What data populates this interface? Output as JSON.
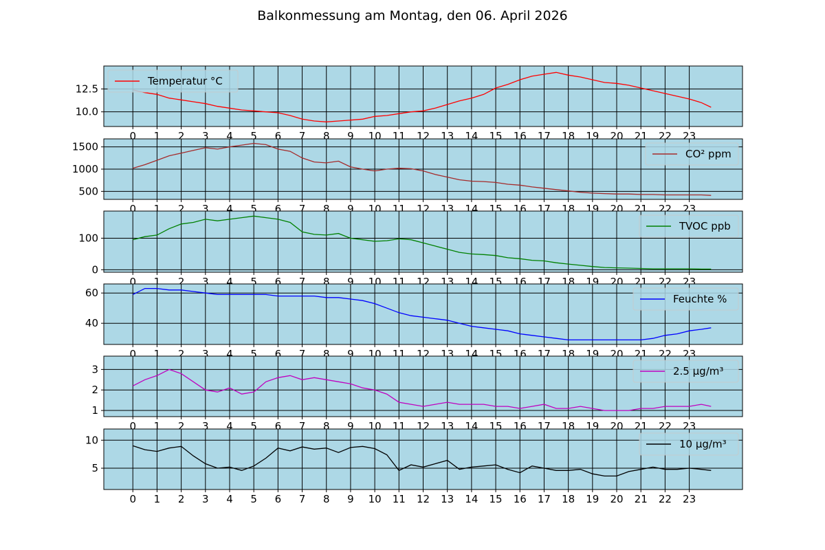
{
  "figure": {
    "title": "Balkonmessung am Montag, den 06. April 2026",
    "background": "#add8e6"
  },
  "chart_data": [
    {
      "type": "line",
      "x_ticks": [
        "0",
        "1",
        "2",
        "3",
        "4",
        "5",
        "6",
        "7",
        "8",
        "9",
        "10",
        "11",
        "12",
        "13",
        "14",
        "15",
        "16",
        "17",
        "18",
        "19",
        "20",
        "21",
        "22",
        "23"
      ],
      "xlim": [
        -1.2,
        25.2
      ],
      "ylim": [
        8.4,
        15.0
      ],
      "y_ticks": [
        "10.0",
        "12.5"
      ],
      "grid": true,
      "legend_position": "top-left",
      "series": [
        {
          "name": "Temperatur °C",
          "color": "#ff0000",
          "x": [
            0,
            0.5,
            1,
            1.5,
            2,
            2.5,
            3,
            3.5,
            4,
            4.5,
            5,
            5.5,
            6,
            6.5,
            7,
            7.5,
            8,
            8.5,
            9,
            9.5,
            10,
            10.5,
            11,
            11.5,
            12,
            12.5,
            13,
            13.5,
            14,
            14.5,
            15,
            15.5,
            16,
            16.5,
            17,
            17.5,
            18,
            18.5,
            19,
            19.5,
            20,
            20.5,
            21,
            21.5,
            22,
            22.5,
            23,
            23.5,
            23.9
          ],
          "values": [
            12.4,
            12.1,
            11.9,
            11.5,
            11.3,
            11.1,
            10.9,
            10.6,
            10.4,
            10.2,
            10.1,
            10.0,
            9.9,
            9.6,
            9.2,
            9.0,
            8.9,
            9.0,
            9.1,
            9.2,
            9.5,
            9.6,
            9.8,
            10.0,
            10.1,
            10.4,
            10.8,
            11.2,
            11.5,
            11.9,
            12.6,
            13.0,
            13.5,
            13.9,
            14.1,
            14.3,
            14.0,
            13.8,
            13.5,
            13.2,
            13.1,
            12.9,
            12.6,
            12.3,
            12.0,
            11.7,
            11.4,
            11.0,
            10.5
          ]
        }
      ]
    },
    {
      "type": "line",
      "x_ticks": [
        "0",
        "1",
        "2",
        "3",
        "4",
        "5",
        "6",
        "7",
        "8",
        "9",
        "10",
        "11",
        "12",
        "13",
        "14",
        "15",
        "16",
        "17",
        "18",
        "19",
        "20",
        "21",
        "22",
        "23"
      ],
      "xlim": [
        -1.2,
        25.2
      ],
      "ylim": [
        320,
        1680
      ],
      "y_ticks": [
        "500",
        "1000",
        "1500"
      ],
      "grid": true,
      "legend_position": "top-right",
      "series": [
        {
          "name": "CO² ppm",
          "color": "#a52a2a",
          "x": [
            0,
            0.5,
            1,
            1.5,
            2,
            2.5,
            3,
            3.5,
            4,
            4.5,
            5,
            5.5,
            6,
            6.5,
            7,
            7.5,
            8,
            8.5,
            9,
            9.5,
            10,
            10.5,
            11,
            11.5,
            12,
            12.5,
            13,
            13.5,
            14,
            14.5,
            15,
            15.5,
            16,
            16.5,
            17,
            17.5,
            18,
            18.5,
            19,
            19.5,
            20,
            20.5,
            21,
            21.5,
            22,
            22.5,
            23,
            23.5,
            23.9
          ],
          "values": [
            1020,
            1100,
            1200,
            1300,
            1360,
            1420,
            1480,
            1450,
            1500,
            1540,
            1580,
            1550,
            1450,
            1400,
            1250,
            1160,
            1140,
            1180,
            1050,
            1000,
            960,
            1000,
            1020,
            1010,
            960,
            880,
            820,
            760,
            730,
            720,
            700,
            660,
            640,
            600,
            570,
            540,
            510,
            480,
            460,
            450,
            440,
            440,
            430,
            430,
            420,
            420,
            420,
            420,
            410
          ]
        }
      ]
    },
    {
      "type": "line",
      "x_ticks": [
        "0",
        "1",
        "2",
        "3",
        "4",
        "5",
        "6",
        "7",
        "8",
        "9",
        "10",
        "11",
        "12",
        "13",
        "14",
        "15",
        "16",
        "17",
        "18",
        "19",
        "20",
        "21",
        "22",
        "23"
      ],
      "xlim": [
        -1.2,
        25.2
      ],
      "ylim": [
        -8,
        186
      ],
      "y_ticks": [
        "0",
        "100"
      ],
      "grid": true,
      "legend_position": "top-right",
      "series": [
        {
          "name": "TVOC ppb",
          "color": "#008000",
          "x": [
            0,
            0.5,
            1,
            1.5,
            2,
            2.5,
            3,
            3.5,
            4,
            4.5,
            5,
            5.5,
            6,
            6.5,
            7,
            7.5,
            8,
            8.5,
            9,
            9.5,
            10,
            10.5,
            11,
            11.5,
            12,
            12.5,
            13,
            13.5,
            14,
            14.5,
            15,
            15.5,
            16,
            16.5,
            17,
            17.5,
            18,
            18.5,
            19,
            19.5,
            20,
            20.5,
            21,
            21.5,
            22,
            22.5,
            23,
            23.5,
            23.9
          ],
          "values": [
            95,
            105,
            110,
            130,
            145,
            150,
            160,
            155,
            160,
            165,
            170,
            165,
            160,
            150,
            120,
            112,
            110,
            115,
            100,
            95,
            90,
            92,
            98,
            95,
            85,
            75,
            65,
            55,
            50,
            48,
            45,
            38,
            35,
            30,
            28,
            22,
            18,
            14,
            10,
            7,
            6,
            5,
            4,
            3,
            3,
            3,
            3,
            2,
            2
          ]
        }
      ]
    },
    {
      "type": "line",
      "x_ticks": [
        "0",
        "1",
        "2",
        "3",
        "4",
        "5",
        "6",
        "7",
        "8",
        "9",
        "10",
        "11",
        "12",
        "13",
        "14",
        "15",
        "16",
        "17",
        "18",
        "19",
        "20",
        "21",
        "22",
        "23"
      ],
      "xlim": [
        -1.2,
        25.2
      ],
      "ylim": [
        26,
        66
      ],
      "y_ticks": [
        "40",
        "60"
      ],
      "grid": true,
      "legend_position": "top-right",
      "series": [
        {
          "name": "Feuchte %",
          "color": "#0000ff",
          "x": [
            0,
            0.5,
            1,
            1.5,
            2,
            2.5,
            3,
            3.5,
            4,
            4.5,
            5,
            5.5,
            6,
            6.5,
            7,
            7.5,
            8,
            8.5,
            9,
            9.5,
            10,
            10.5,
            11,
            11.5,
            12,
            12.5,
            13,
            13.5,
            14,
            14.5,
            15,
            15.5,
            16,
            16.5,
            17,
            17.5,
            18,
            18.5,
            19,
            19.5,
            20,
            20.5,
            21,
            21.5,
            22,
            22.5,
            23,
            23.5,
            23.9
          ],
          "values": [
            59,
            63,
            63,
            62,
            62,
            61,
            60,
            59,
            59,
            59,
            59,
            59,
            58,
            58,
            58,
            58,
            57,
            57,
            56,
            55,
            53,
            50,
            47,
            45,
            44,
            43,
            42,
            40,
            38,
            37,
            36,
            35,
            33,
            32,
            31,
            30,
            29,
            29,
            29,
            29,
            29,
            29,
            29,
            30,
            32,
            33,
            35,
            36,
            37
          ]
        }
      ]
    },
    {
      "type": "line",
      "x_ticks": [
        "0",
        "1",
        "2",
        "3",
        "4",
        "5",
        "6",
        "7",
        "8",
        "9",
        "10",
        "11",
        "12",
        "13",
        "14",
        "15",
        "16",
        "17",
        "18",
        "19",
        "20",
        "21",
        "22",
        "23"
      ],
      "xlim": [
        -1.2,
        25.2
      ],
      "ylim": [
        0.7,
        3.65
      ],
      "y_ticks": [
        "1",
        "2",
        "3"
      ],
      "grid": true,
      "legend_position": "top-right",
      "series": [
        {
          "name": "2.5 µg/m³",
          "color": "#bf00bf",
          "x": [
            0,
            0.5,
            1,
            1.5,
            2,
            2.5,
            3,
            3.5,
            4,
            4.5,
            5,
            5.5,
            6,
            6.5,
            7,
            7.5,
            8,
            8.5,
            9,
            9.5,
            10,
            10.5,
            11,
            11.5,
            12,
            12.5,
            13,
            13.5,
            14,
            14.5,
            15,
            15.5,
            16,
            16.5,
            17,
            17.5,
            18,
            18.5,
            19,
            19.5,
            20,
            20.5,
            21,
            21.5,
            22,
            22.5,
            23,
            23.5,
            23.9
          ],
          "values": [
            2.2,
            2.5,
            2.7,
            3.0,
            2.8,
            2.4,
            2.0,
            1.9,
            2.1,
            1.8,
            1.9,
            2.4,
            2.6,
            2.7,
            2.5,
            2.6,
            2.5,
            2.4,
            2.3,
            2.1,
            2.0,
            1.8,
            1.4,
            1.3,
            1.2,
            1.3,
            1.4,
            1.3,
            1.3,
            1.3,
            1.2,
            1.2,
            1.1,
            1.2,
            1.3,
            1.1,
            1.1,
            1.2,
            1.1,
            1.0,
            1.0,
            1.0,
            1.1,
            1.1,
            1.2,
            1.2,
            1.2,
            1.3,
            1.2
          ]
        }
      ]
    },
    {
      "type": "line",
      "x_ticks": [
        "0",
        "1",
        "2",
        "3",
        "4",
        "5",
        "6",
        "7",
        "8",
        "9",
        "10",
        "11",
        "12",
        "13",
        "14",
        "15",
        "16",
        "17",
        "18",
        "19",
        "20",
        "21",
        "22",
        "23"
      ],
      "xlim": [
        -1.2,
        25.2
      ],
      "ylim": [
        1.2,
        12.0
      ],
      "y_ticks": [
        "5",
        "10"
      ],
      "grid": true,
      "legend_position": "top-right",
      "series": [
        {
          "name": "10 µg/m³",
          "color": "#000000",
          "x": [
            0,
            0.5,
            1,
            1.5,
            2,
            2.5,
            3,
            3.5,
            4,
            4.5,
            5,
            5.5,
            6,
            6.5,
            7,
            7.5,
            8,
            8.5,
            9,
            9.5,
            10,
            10.5,
            11,
            11.5,
            12,
            12.5,
            13,
            13.5,
            14,
            14.5,
            15,
            15.5,
            16,
            16.5,
            17,
            17.5,
            18,
            18.5,
            19,
            19.5,
            20,
            20.5,
            21,
            21.5,
            22,
            22.5,
            23,
            23.5,
            23.9
          ],
          "values": [
            9.0,
            8.3,
            8.0,
            8.6,
            8.9,
            7.2,
            5.8,
            5.0,
            5.2,
            4.6,
            5.4,
            6.8,
            8.6,
            8.1,
            8.8,
            8.4,
            8.6,
            7.8,
            8.7,
            8.9,
            8.5,
            7.4,
            4.6,
            5.6,
            5.2,
            5.8,
            6.4,
            4.8,
            5.2,
            5.4,
            5.6,
            4.8,
            4.2,
            5.4,
            5.0,
            4.6,
            4.6,
            4.8,
            4.0,
            3.6,
            3.6,
            4.4,
            4.8,
            5.2,
            4.8,
            4.8,
            5.0,
            4.8,
            4.6
          ]
        }
      ]
    }
  ]
}
